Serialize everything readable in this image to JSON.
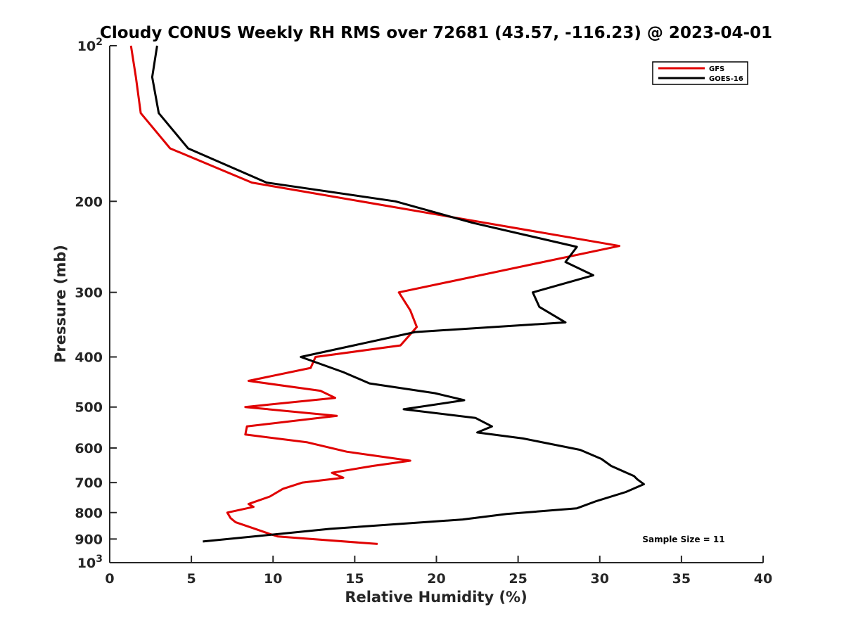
{
  "chart_data": {
    "type": "line",
    "title": "Cloudy CONUS Weekly RH RMS over 72681 (43.57, -116.23) @ 2023-04-01",
    "xlabel": "Relative Humidity (%)",
    "ylabel": "Pressure (mb)",
    "xlim": [
      0,
      40
    ],
    "ylim": [
      100,
      1000
    ],
    "yscale": "log",
    "y_reversed": true,
    "grid": false,
    "legend_position": "top-right",
    "annotation": "Sample Size = 11",
    "xticks": [
      "0",
      "5",
      "10",
      "15",
      "20",
      "25",
      "30",
      "35",
      "40"
    ],
    "yticks": [
      {
        "value": 200,
        "label": "200"
      },
      {
        "value": 300,
        "label": "300"
      },
      {
        "value": 400,
        "label": "400"
      },
      {
        "value": 500,
        "label": "500"
      },
      {
        "value": 600,
        "label": "600"
      },
      {
        "value": 700,
        "label": "700"
      },
      {
        "value": 800,
        "label": "800"
      },
      {
        "value": 900,
        "label": "900"
      }
    ],
    "ytick_ends": [
      {
        "value": 100,
        "base": "10",
        "exp": "2"
      },
      {
        "value": 1000,
        "base": "10",
        "exp": "3"
      }
    ],
    "series": [
      {
        "name": "GFS",
        "color": "#e00000",
        "points": [
          [
            1.3,
            100
          ],
          [
            1.6,
            115
          ],
          [
            1.9,
            135
          ],
          [
            3.7,
            158
          ],
          [
            8.7,
            184
          ],
          [
            31.2,
            244
          ],
          [
            17.7,
            300
          ],
          [
            18.4,
            325
          ],
          [
            18.8,
            350
          ],
          [
            17.8,
            380
          ],
          [
            12.6,
            400
          ],
          [
            12.3,
            420
          ],
          [
            8.5,
            445
          ],
          [
            12.9,
            465
          ],
          [
            13.8,
            480
          ],
          [
            8.3,
            500
          ],
          [
            13.9,
            520
          ],
          [
            8.4,
            545
          ],
          [
            8.3,
            565
          ],
          [
            12.1,
            585
          ],
          [
            14.5,
            610
          ],
          [
            18.4,
            635
          ],
          [
            16.1,
            650
          ],
          [
            13.6,
            670
          ],
          [
            14.3,
            685
          ],
          [
            11.8,
            700
          ],
          [
            10.6,
            720
          ],
          [
            9.8,
            745
          ],
          [
            8.5,
            770
          ],
          [
            8.8,
            780
          ],
          [
            7.2,
            800
          ],
          [
            7.4,
            820
          ],
          [
            7.7,
            835
          ],
          [
            8.9,
            860
          ],
          [
            9.8,
            880
          ],
          [
            10.3,
            890
          ],
          [
            16.4,
            920
          ]
        ]
      },
      {
        "name": "GOES-16",
        "color": "#000000",
        "points": [
          [
            2.9,
            100
          ],
          [
            2.6,
            115
          ],
          [
            3.0,
            135
          ],
          [
            4.8,
            158
          ],
          [
            9.6,
            184
          ],
          [
            17.5,
            200
          ],
          [
            22.2,
            220
          ],
          [
            28.6,
            245
          ],
          [
            27.9,
            262
          ],
          [
            29.6,
            278
          ],
          [
            25.9,
            300
          ],
          [
            26.3,
            320
          ],
          [
            27.9,
            343
          ],
          [
            18.7,
            358
          ],
          [
            11.7,
            400
          ],
          [
            14.3,
            428
          ],
          [
            15.9,
            450
          ],
          [
            19.9,
            470
          ],
          [
            21.7,
            485
          ],
          [
            18.0,
            505
          ],
          [
            22.4,
            525
          ],
          [
            23.4,
            545
          ],
          [
            22.5,
            560
          ],
          [
            25.3,
            575
          ],
          [
            28.8,
            605
          ],
          [
            30.1,
            630
          ],
          [
            30.7,
            650
          ],
          [
            32.1,
            680
          ],
          [
            32.3,
            690
          ],
          [
            32.7,
            705
          ],
          [
            31.6,
            730
          ],
          [
            29.8,
            760
          ],
          [
            28.6,
            785
          ],
          [
            24.3,
            805
          ],
          [
            21.6,
            825
          ],
          [
            13.5,
            860
          ],
          [
            5.7,
            910
          ]
        ]
      }
    ]
  }
}
